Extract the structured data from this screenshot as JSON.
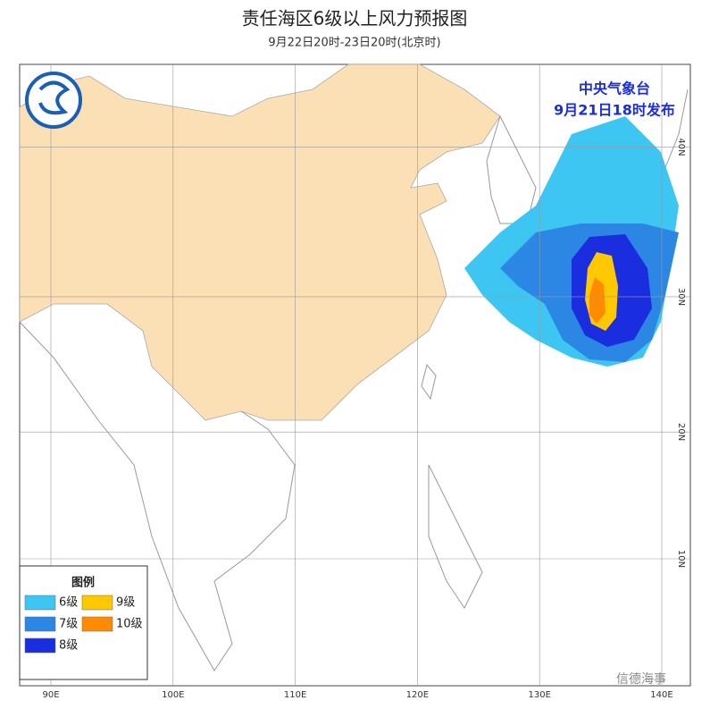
{
  "header": {
    "title": "责任海区6级以上风力预报图",
    "subtitle": "9月22日20时-23日20时(北京时)"
  },
  "issuer": {
    "name": "中央气象台",
    "time": "9月21日18时发布"
  },
  "grid": {
    "lon": [
      {
        "value": 90,
        "label": "90E"
      },
      {
        "value": 100,
        "label": "100E"
      },
      {
        "value": 110,
        "label": "110E"
      },
      {
        "value": 120,
        "label": "120E"
      },
      {
        "value": 130,
        "label": "130E"
      },
      {
        "value": 140,
        "label": "140E"
      }
    ],
    "lat": [
      {
        "value": 10,
        "label": "10N"
      },
      {
        "value": 20,
        "label": "20N"
      },
      {
        "value": 30,
        "label": "30N"
      },
      {
        "value": 40,
        "label": "40N"
      }
    ]
  },
  "legend": {
    "title": "图例",
    "items": [
      {
        "name": "6级",
        "color": "#3ec6f2"
      },
      {
        "name": "7级",
        "color": "#2b87e3"
      },
      {
        "name": "8级",
        "color": "#1a2ee0"
      },
      {
        "name": "9级",
        "color": "#ffc800"
      },
      {
        "name": "10级",
        "color": "#ff8c00"
      }
    ]
  },
  "watermark": "信德海事"
}
